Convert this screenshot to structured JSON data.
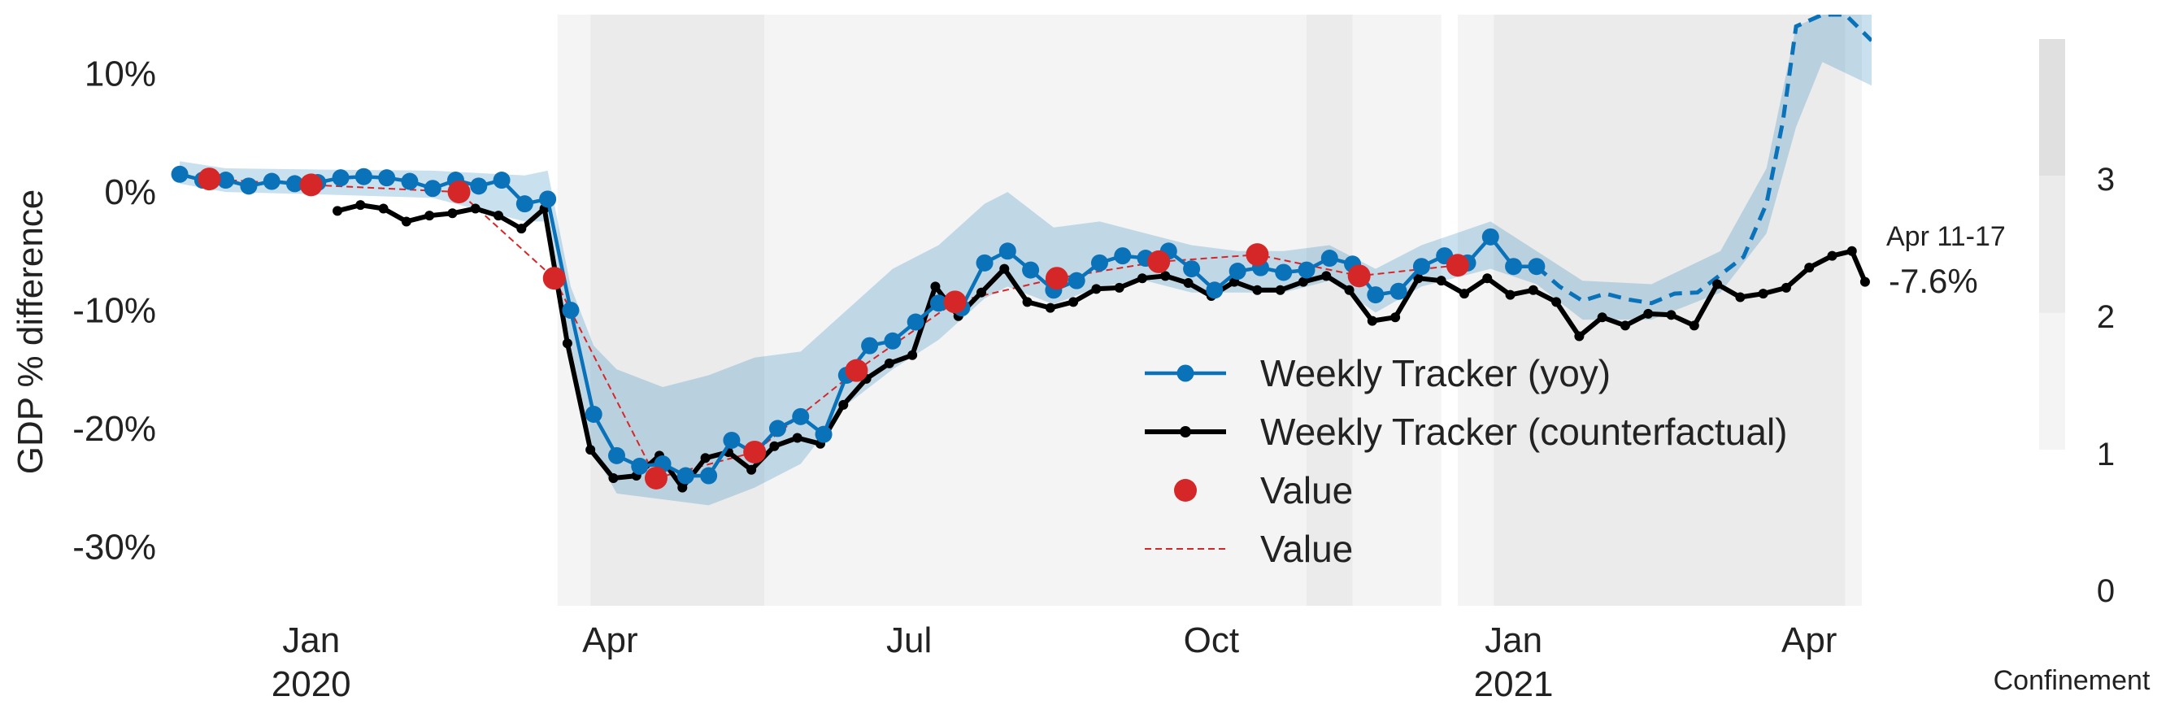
{
  "chart_data": {
    "type": "line",
    "title": "",
    "xlabel": "",
    "ylabel": "GDP % difference",
    "ylim": [
      -35,
      15
    ],
    "xlim": [
      "2019-11-20",
      "2021-04-20"
    ],
    "grid": false,
    "legend_position": "lower-right",
    "x_ticks": [
      {
        "date": "2020-01-01",
        "label": "Jan",
        "sublabel": "2020"
      },
      {
        "date": "2020-04-01",
        "label": "Apr",
        "sublabel": ""
      },
      {
        "date": "2020-07-01",
        "label": "Jul",
        "sublabel": ""
      },
      {
        "date": "2020-10-01",
        "label": "Oct",
        "sublabel": ""
      },
      {
        "date": "2021-01-01",
        "label": "Jan",
        "sublabel": "2021"
      },
      {
        "date": "2021-04-01",
        "label": "Apr",
        "sublabel": ""
      }
    ],
    "y_ticks": [
      {
        "value": 10,
        "label": "10%"
      },
      {
        "value": 0,
        "label": "0%"
      },
      {
        "value": -10,
        "label": "-10%"
      },
      {
        "value": -20,
        "label": "-20%"
      },
      {
        "value": -30,
        "label": "-30%"
      }
    ],
    "confinement_bands": [
      {
        "start": "2020-03-16",
        "end": "2020-03-26",
        "level": 1
      },
      {
        "start": "2020-03-26",
        "end": "2020-05-18",
        "level": 2
      },
      {
        "start": "2020-05-18",
        "end": "2020-10-30",
        "level": 1
      },
      {
        "start": "2020-10-30",
        "end": "2020-11-13",
        "level": 2
      },
      {
        "start": "2020-11-13",
        "end": "2020-12-10",
        "level": 1
      },
      {
        "start": "2020-12-15",
        "end": "2020-12-26",
        "level": 1
      },
      {
        "start": "2020-12-26",
        "end": "2021-04-12",
        "level": 2
      },
      {
        "start": "2021-04-12",
        "end": "2021-04-17",
        "level": 1
      }
    ],
    "colorbar": {
      "label": "Confinement",
      "ticks": [
        "0",
        "1",
        "2",
        "3"
      ],
      "min": 0,
      "max": 4,
      "segments": [
        {
          "from": 1,
          "to": 2,
          "color": "#f4f4f4"
        },
        {
          "from": 2,
          "to": 3,
          "color": "#ebebeb"
        },
        {
          "from": 3,
          "to": 4,
          "color": "#e0e0e0"
        }
      ]
    },
    "series": [
      {
        "name": "Weekly Tracker (yoy)",
        "kind": "line-dots",
        "color": "#0a72b8",
        "points": [
          [
            "2019-11-22",
            1.5
          ],
          [
            "2019-11-29",
            1.0
          ],
          [
            "2019-12-06",
            1.0
          ],
          [
            "2019-12-13",
            0.5
          ],
          [
            "2019-12-20",
            0.9
          ],
          [
            "2019-12-27",
            0.7
          ],
          [
            "2020-01-03",
            0.8
          ],
          [
            "2020-01-10",
            1.2
          ],
          [
            "2020-01-17",
            1.3
          ],
          [
            "2020-01-24",
            1.2
          ],
          [
            "2020-01-31",
            0.9
          ],
          [
            "2020-02-07",
            0.3
          ],
          [
            "2020-02-14",
            1.0
          ],
          [
            "2020-02-21",
            0.5
          ],
          [
            "2020-02-28",
            1.0
          ],
          [
            "2020-03-06",
            -1.0
          ],
          [
            "2020-03-13",
            -0.6
          ],
          [
            "2020-03-20",
            -10.0
          ],
          [
            "2020-03-27",
            -18.8
          ],
          [
            "2020-04-03",
            -22.3
          ],
          [
            "2020-04-10",
            -23.2
          ],
          [
            "2020-04-17",
            -23.0
          ],
          [
            "2020-04-24",
            -24.0
          ],
          [
            "2020-05-01",
            -24.0
          ],
          [
            "2020-05-08",
            -21.0
          ],
          [
            "2020-05-15",
            -22.1
          ],
          [
            "2020-05-22",
            -20.0
          ],
          [
            "2020-05-29",
            -19.0
          ],
          [
            "2020-06-05",
            -20.5
          ],
          [
            "2020-06-12",
            -15.5
          ],
          [
            "2020-06-19",
            -13.0
          ],
          [
            "2020-06-26",
            -12.6
          ],
          [
            "2020-07-03",
            -11.0
          ],
          [
            "2020-07-10",
            -9.4
          ],
          [
            "2020-07-17",
            -9.8
          ],
          [
            "2020-07-24",
            -6.0
          ],
          [
            "2020-07-31",
            -5.0
          ],
          [
            "2020-08-07",
            -6.6
          ],
          [
            "2020-08-14",
            -8.3
          ],
          [
            "2020-08-21",
            -7.5
          ],
          [
            "2020-08-28",
            -6.0
          ],
          [
            "2020-09-04",
            -5.4
          ],
          [
            "2020-09-11",
            -5.6
          ],
          [
            "2020-09-18",
            -5.0
          ],
          [
            "2020-09-25",
            -6.5
          ],
          [
            "2020-10-02",
            -8.3
          ],
          [
            "2020-10-09",
            -6.7
          ],
          [
            "2020-10-16",
            -6.4
          ],
          [
            "2020-10-23",
            -6.8
          ],
          [
            "2020-10-30",
            -6.6
          ],
          [
            "2020-11-06",
            -5.6
          ],
          [
            "2020-11-13",
            -6.1
          ],
          [
            "2020-11-20",
            -8.7
          ],
          [
            "2020-11-27",
            -8.4
          ],
          [
            "2020-12-04",
            -6.3
          ],
          [
            "2020-12-11",
            -5.4
          ],
          [
            "2020-12-18",
            -6.0
          ],
          [
            "2020-12-25",
            -3.8
          ],
          [
            "2021-01-01",
            -6.3
          ],
          [
            "2021-01-08",
            -6.3
          ]
        ]
      },
      {
        "name": "Weekly Tracker (counterfactual)",
        "kind": "line-smalldots",
        "color": "#000000",
        "points": [
          [
            "2020-01-09",
            -1.6
          ],
          [
            "2020-01-16",
            -1.1
          ],
          [
            "2020-01-23",
            -1.4
          ],
          [
            "2020-01-30",
            -2.5
          ],
          [
            "2020-02-06",
            -2.0
          ],
          [
            "2020-02-13",
            -1.8
          ],
          [
            "2020-02-20",
            -1.4
          ],
          [
            "2020-02-27",
            -2.0
          ],
          [
            "2020-03-05",
            -3.1
          ],
          [
            "2020-03-12",
            -1.4
          ],
          [
            "2020-03-19",
            -12.8
          ],
          [
            "2020-03-26",
            -21.8
          ],
          [
            "2020-04-02",
            -24.2
          ],
          [
            "2020-04-09",
            -24.0
          ],
          [
            "2020-04-16",
            -22.3
          ],
          [
            "2020-04-23",
            -25.0
          ],
          [
            "2020-04-30",
            -22.5
          ],
          [
            "2020-05-07",
            -22.0
          ],
          [
            "2020-05-14",
            -23.5
          ],
          [
            "2020-05-21",
            -21.5
          ],
          [
            "2020-05-28",
            -20.8
          ],
          [
            "2020-06-04",
            -21.3
          ],
          [
            "2020-06-11",
            -18.0
          ],
          [
            "2020-06-18",
            -15.8
          ],
          [
            "2020-06-25",
            -14.5
          ],
          [
            "2020-07-02",
            -13.8
          ],
          [
            "2020-07-09",
            -8.0
          ],
          [
            "2020-07-16",
            -10.5
          ],
          [
            "2020-07-23",
            -8.5
          ],
          [
            "2020-07-30",
            -6.5
          ],
          [
            "2020-08-06",
            -9.3
          ],
          [
            "2020-08-13",
            -9.8
          ],
          [
            "2020-08-20",
            -9.3
          ],
          [
            "2020-08-27",
            -8.2
          ],
          [
            "2020-09-03",
            -8.1
          ],
          [
            "2020-09-10",
            -7.3
          ],
          [
            "2020-09-17",
            -7.1
          ],
          [
            "2020-09-24",
            -7.7
          ],
          [
            "2020-10-01",
            -8.8
          ],
          [
            "2020-10-08",
            -7.6
          ],
          [
            "2020-10-15",
            -8.3
          ],
          [
            "2020-10-22",
            -8.3
          ],
          [
            "2020-10-29",
            -7.6
          ],
          [
            "2020-11-05",
            -7.1
          ],
          [
            "2020-11-12",
            -8.3
          ],
          [
            "2020-11-19",
            -10.9
          ],
          [
            "2020-11-26",
            -10.6
          ],
          [
            "2020-12-03",
            -7.3
          ],
          [
            "2020-12-10",
            -7.5
          ],
          [
            "2020-12-17",
            -8.6
          ],
          [
            "2020-12-24",
            -7.3
          ],
          [
            "2020-12-31",
            -8.7
          ],
          [
            "2021-01-07",
            -8.3
          ],
          [
            "2021-01-14",
            -9.3
          ],
          [
            "2021-01-21",
            -12.2
          ],
          [
            "2021-01-28",
            -10.6
          ],
          [
            "2021-02-04",
            -11.3
          ],
          [
            "2021-02-11",
            -10.3
          ],
          [
            "2021-02-18",
            -10.4
          ],
          [
            "2021-02-25",
            -11.3
          ],
          [
            "2021-03-04",
            -7.8
          ],
          [
            "2021-03-11",
            -8.9
          ],
          [
            "2021-03-18",
            -8.6
          ],
          [
            "2021-03-25",
            -8.1
          ],
          [
            "2021-04-01",
            -6.4
          ],
          [
            "2021-04-08",
            -5.4
          ],
          [
            "2021-04-14",
            -5.0
          ],
          [
            "2021-04-18",
            -7.6
          ]
        ]
      },
      {
        "name": "Value",
        "kind": "markers",
        "color": "#d62728",
        "points": [
          [
            "2019-12-01",
            1.1
          ],
          [
            "2020-01-01",
            0.6
          ],
          [
            "2020-02-15",
            0.0
          ],
          [
            "2020-03-15",
            -7.3
          ],
          [
            "2020-04-15",
            -24.2
          ],
          [
            "2020-05-15",
            -22.0
          ],
          [
            "2020-06-15",
            -15.1
          ],
          [
            "2020-07-15",
            -9.3
          ],
          [
            "2020-08-15",
            -7.3
          ],
          [
            "2020-09-15",
            -5.9
          ],
          [
            "2020-10-15",
            -5.3
          ],
          [
            "2020-11-15",
            -7.1
          ],
          [
            "2020-12-15",
            -6.2
          ]
        ]
      },
      {
        "name": "Value",
        "kind": "dashed-line",
        "color": "#d62728",
        "points": [
          [
            "2019-12-01",
            1.1
          ],
          [
            "2020-01-01",
            0.6
          ],
          [
            "2020-02-15",
            0.0
          ],
          [
            "2020-03-15",
            -7.3
          ],
          [
            "2020-04-15",
            -24.2
          ],
          [
            "2020-05-15",
            -22.0
          ],
          [
            "2020-06-15",
            -15.1
          ],
          [
            "2020-07-15",
            -9.3
          ],
          [
            "2020-08-15",
            -7.3
          ],
          [
            "2020-09-15",
            -5.9
          ],
          [
            "2020-10-15",
            -5.3
          ],
          [
            "2020-11-15",
            -7.1
          ],
          [
            "2020-12-15",
            -6.2
          ]
        ]
      },
      {
        "name": "",
        "kind": "dashed-projection",
        "color": "#0a72b8",
        "points": [
          [
            "2021-01-08",
            -6.3
          ],
          [
            "2021-01-15",
            -8.0
          ],
          [
            "2021-01-22",
            -9.2
          ],
          [
            "2021-01-29",
            -8.6
          ],
          [
            "2021-02-05",
            -9.1
          ],
          [
            "2021-02-12",
            -9.4
          ],
          [
            "2021-02-19",
            -8.6
          ],
          [
            "2021-02-26",
            -8.5
          ],
          [
            "2021-03-05",
            -7.0
          ],
          [
            "2021-03-12",
            -5.5
          ],
          [
            "2021-03-19",
            -1.0
          ],
          [
            "2021-03-24",
            6.0
          ],
          [
            "2021-03-28",
            14.0
          ],
          [
            "2021-04-05",
            18.0
          ],
          [
            "2021-04-12",
            15.0
          ],
          [
            "2021-04-20",
            12.8
          ]
        ]
      }
    ],
    "band": {
      "color": "#0a72b8",
      "opacity": 0.22,
      "upper": [
        [
          "2019-11-22",
          2.6
        ],
        [
          "2019-12-06",
          2.0
        ],
        [
          "2020-01-03",
          1.9
        ],
        [
          "2020-02-07",
          1.8
        ],
        [
          "2020-03-06",
          1.4
        ],
        [
          "2020-03-13",
          1.8
        ],
        [
          "2020-03-20",
          -8.0
        ],
        [
          "2020-03-27",
          -13.0
        ],
        [
          "2020-04-03",
          -15.0
        ],
        [
          "2020-04-17",
          -16.5
        ],
        [
          "2020-05-01",
          -15.5
        ],
        [
          "2020-05-15",
          -14.0
        ],
        [
          "2020-05-29",
          -13.5
        ],
        [
          "2020-06-12",
          -10.0
        ],
        [
          "2020-06-26",
          -6.5
        ],
        [
          "2020-07-10",
          -4.5
        ],
        [
          "2020-07-24",
          -1.0
        ],
        [
          "2020-07-31",
          0.0
        ],
        [
          "2020-08-14",
          -3.0
        ],
        [
          "2020-08-28",
          -2.5
        ],
        [
          "2020-09-11",
          -3.5
        ],
        [
          "2020-09-25",
          -4.5
        ],
        [
          "2020-10-09",
          -5.0
        ],
        [
          "2020-10-23",
          -5.0
        ],
        [
          "2020-11-06",
          -4.5
        ],
        [
          "2020-11-20",
          -6.5
        ],
        [
          "2020-12-04",
          -4.5
        ],
        [
          "2020-12-25",
          -2.5
        ],
        [
          "2021-01-08",
          -5.0
        ],
        [
          "2021-01-22",
          -7.5
        ],
        [
          "2021-02-12",
          -7.8
        ],
        [
          "2021-03-05",
          -5.0
        ],
        [
          "2021-03-19",
          2.0
        ],
        [
          "2021-03-28",
          14.0
        ],
        [
          "2021-04-05",
          18.0
        ],
        [
          "2021-04-20",
          15.0
        ]
      ],
      "lower": [
        [
          "2021-04-20",
          9.0
        ],
        [
          "2021-04-05",
          11.0
        ],
        [
          "2021-03-28",
          5.5
        ],
        [
          "2021-03-19",
          -3.5
        ],
        [
          "2021-03-05",
          -8.5
        ],
        [
          "2021-02-12",
          -10.8
        ],
        [
          "2021-01-22",
          -10.8
        ],
        [
          "2021-01-08",
          -7.8
        ],
        [
          "2020-12-25",
          -6.5
        ],
        [
          "2020-12-04",
          -8.0
        ],
        [
          "2020-11-20",
          -10.2
        ],
        [
          "2020-11-06",
          -7.5
        ],
        [
          "2020-10-23",
          -8.5
        ],
        [
          "2020-10-09",
          -8.5
        ],
        [
          "2020-09-25",
          -8.5
        ],
        [
          "2020-09-11",
          -7.5
        ],
        [
          "2020-08-28",
          -8.0
        ],
        [
          "2020-08-14",
          -9.5
        ],
        [
          "2020-07-31",
          -8.0
        ],
        [
          "2020-07-24",
          -9.0
        ],
        [
          "2020-07-10",
          -12.5
        ],
        [
          "2020-06-26",
          -15.0
        ],
        [
          "2020-06-12",
          -18.0
        ],
        [
          "2020-05-29",
          -23.0
        ],
        [
          "2020-05-15",
          -25.0
        ],
        [
          "2020-05-01",
          -26.5
        ],
        [
          "2020-04-17",
          -26.0
        ],
        [
          "2020-04-03",
          -25.5
        ],
        [
          "2020-03-27",
          -22.0
        ],
        [
          "2020-03-20",
          -13.0
        ],
        [
          "2020-03-13",
          -2.5
        ],
        [
          "2020-03-06",
          -2.5
        ],
        [
          "2020-02-07",
          -0.5
        ],
        [
          "2020-01-03",
          -0.2
        ],
        [
          "2019-12-06",
          0.0
        ],
        [
          "2019-11-22",
          0.7
        ]
      ]
    },
    "annotation": {
      "period": "Apr 11-17",
      "value": "-7.6%"
    },
    "legend": [
      {
        "label": "Weekly Tracker (yoy)",
        "style": "line-dot",
        "color": "#0a72b8"
      },
      {
        "label": "Weekly Tracker (counterfactual)",
        "style": "line-smalldot",
        "color": "#000000"
      },
      {
        "label": "Value",
        "style": "marker",
        "color": "#d62728"
      },
      {
        "label": "Value",
        "style": "dashed",
        "color": "#d62728"
      }
    ]
  }
}
